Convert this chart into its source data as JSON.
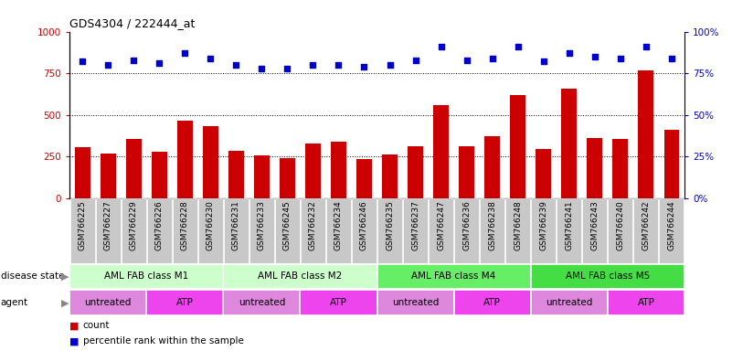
{
  "title": "GDS4304 / 222444_at",
  "samples": [
    "GSM766225",
    "GSM766227",
    "GSM766229",
    "GSM766226",
    "GSM766228",
    "GSM766230",
    "GSM766231",
    "GSM766233",
    "GSM766245",
    "GSM766232",
    "GSM766234",
    "GSM766246",
    "GSM766235",
    "GSM766237",
    "GSM766247",
    "GSM766236",
    "GSM766238",
    "GSM766248",
    "GSM766239",
    "GSM766241",
    "GSM766243",
    "GSM766240",
    "GSM766242",
    "GSM766244"
  ],
  "counts": [
    305,
    270,
    355,
    280,
    465,
    435,
    285,
    255,
    240,
    330,
    340,
    235,
    265,
    310,
    560,
    315,
    370,
    620,
    295,
    660,
    360,
    355,
    765,
    410
  ],
  "percentiles": [
    82,
    80,
    83,
    81,
    87,
    84,
    80,
    78,
    78,
    80,
    80,
    79,
    80,
    83,
    91,
    83,
    84,
    91,
    82,
    87,
    85,
    84,
    91,
    84
  ],
  "disease_state_groups": [
    {
      "label": "AML FAB class M1",
      "start": 0,
      "end": 6,
      "color": "#CCFFCC"
    },
    {
      "label": "AML FAB class M2",
      "start": 6,
      "end": 12,
      "color": "#CCFFCC"
    },
    {
      "label": "AML FAB class M4",
      "start": 12,
      "end": 18,
      "color": "#66EE66"
    },
    {
      "label": "AML FAB class M5",
      "start": 18,
      "end": 24,
      "color": "#44DD44"
    }
  ],
  "agent_groups": [
    {
      "label": "untreated",
      "start": 0,
      "end": 3,
      "color": "#DD88DD"
    },
    {
      "label": "ATP",
      "start": 3,
      "end": 6,
      "color": "#EE44EE"
    },
    {
      "label": "untreated",
      "start": 6,
      "end": 9,
      "color": "#DD88DD"
    },
    {
      "label": "ATP",
      "start": 9,
      "end": 12,
      "color": "#EE44EE"
    },
    {
      "label": "untreated",
      "start": 12,
      "end": 15,
      "color": "#DD88DD"
    },
    {
      "label": "ATP",
      "start": 15,
      "end": 18,
      "color": "#EE44EE"
    },
    {
      "label": "untreated",
      "start": 18,
      "end": 21,
      "color": "#DD88DD"
    },
    {
      "label": "ATP",
      "start": 21,
      "end": 24,
      "color": "#EE44EE"
    }
  ],
  "bar_color": "#CC0000",
  "dot_color": "#0000CC",
  "ylim_left": [
    0,
    1000
  ],
  "ylim_right": [
    0,
    100
  ],
  "yticks_left": [
    0,
    250,
    500,
    750,
    1000
  ],
  "yticks_right": [
    0,
    25,
    50,
    75,
    100
  ],
  "grid_values": [
    250,
    500,
    750
  ],
  "tick_bg_color": "#C8C8C8",
  "main_bg": "white",
  "label_disease_state": "disease state",
  "label_agent": "agent",
  "legend_count": "count",
  "legend_pct": "percentile rank within the sample"
}
